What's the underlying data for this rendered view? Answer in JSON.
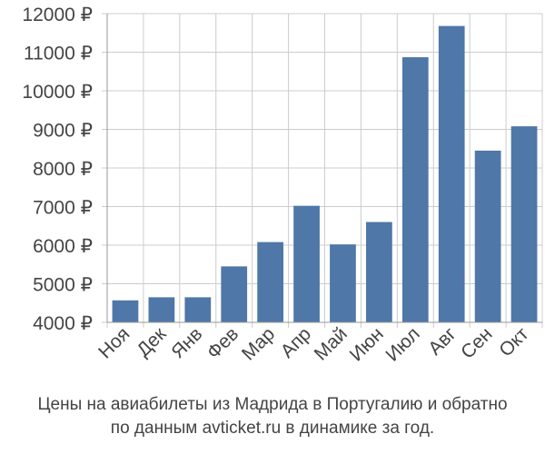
{
  "chart_data": {
    "type": "bar",
    "categories": [
      "Ноя",
      "Дек",
      "Янв",
      "Фев",
      "Мар",
      "Апр",
      "Май",
      "Июн",
      "Июл",
      "Авг",
      "Сен",
      "Окт"
    ],
    "values": [
      4570,
      4650,
      4650,
      5450,
      6080,
      7020,
      6020,
      6600,
      10870,
      11680,
      8450,
      9080
    ],
    "ylim": [
      4000,
      12000
    ],
    "yticks": [
      4000,
      5000,
      6000,
      7000,
      8000,
      9000,
      10000,
      11000,
      12000
    ],
    "ytick_labels": [
      "4000 ₽",
      "5000 ₽",
      "6000 ₽",
      "7000 ₽",
      "8000 ₽",
      "9000 ₽",
      "10000 ₽",
      "11000 ₽",
      "12000 ₽"
    ],
    "grid": true,
    "bar_color": "#4f77a8",
    "grid_color": "#cccccc",
    "title": "",
    "xlabel": "",
    "ylabel": ""
  },
  "caption": {
    "line1": "Цены на авиабилеты из Мадрида в Португалию и обратно",
    "line2": "по данным avticket.ru в динамике за год."
  }
}
